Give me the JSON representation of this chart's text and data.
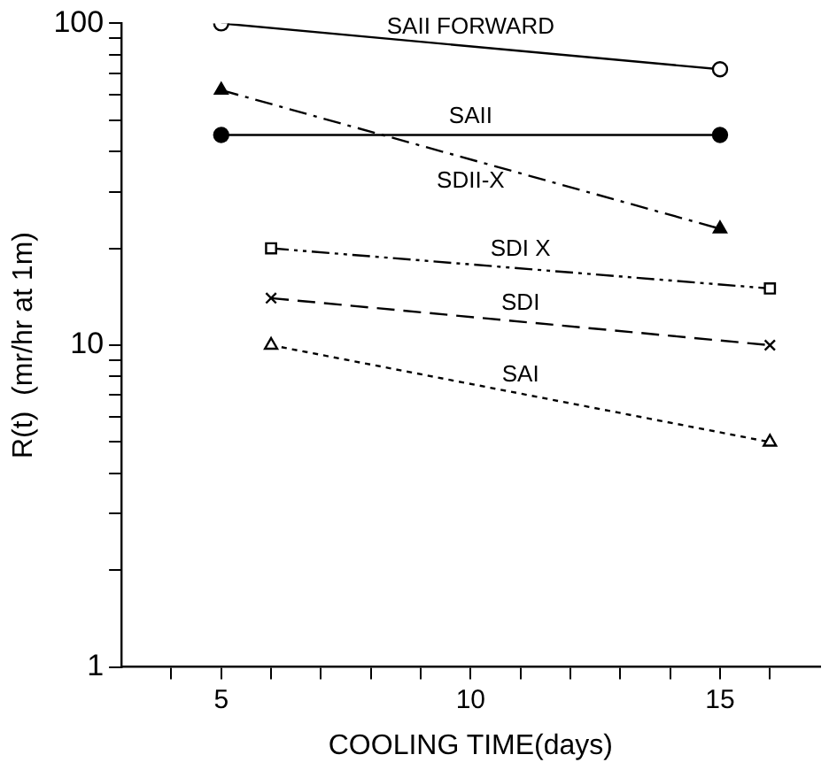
{
  "chart_data": {
    "type": "line",
    "xlabel": "COOLING TIME(days)",
    "ylabel": "R(t)  (mr/hr at 1m)",
    "log": "y",
    "grid": false,
    "legend": false,
    "xlim": [
      3,
      17
    ],
    "xticks": [
      {
        "value": 4,
        "label": null
      },
      5,
      {
        "value": 6,
        "label": null
      },
      {
        "value": 7,
        "label": null
      },
      {
        "value": 8,
        "label": null
      },
      {
        "value": 9,
        "label": null
      },
      10,
      {
        "value": 11,
        "label": null
      },
      {
        "value": 12,
        "label": null
      },
      {
        "value": 13,
        "label": null
      },
      {
        "value": 14,
        "label": null
      },
      15,
      {
        "value": 16,
        "label": null
      }
    ],
    "ylim": [
      1,
      100
    ],
    "yticks": [
      1,
      {
        "value": 2,
        "label": null
      },
      {
        "value": 3,
        "label": null
      },
      {
        "value": 4,
        "label": null
      },
      {
        "value": 5,
        "label": null
      },
      {
        "value": 6,
        "label": null
      },
      {
        "value": 7,
        "label": null
      },
      {
        "value": 8,
        "label": null
      },
      {
        "value": 9,
        "label": null
      },
      10,
      {
        "value": 20,
        "label": null
      },
      {
        "value": 30,
        "label": null
      },
      {
        "value": 40,
        "label": null
      },
      {
        "value": 50,
        "label": null
      },
      {
        "value": 60,
        "label": null
      },
      {
        "value": 70,
        "label": null
      },
      {
        "value": 80,
        "label": null
      },
      {
        "value": 90,
        "label": null
      },
      100
    ],
    "series": [
      {
        "name": "SAII FORWARD",
        "color": "#000000",
        "x": [
          5,
          15
        ],
        "values": [
          100,
          72
        ],
        "marker": "circle",
        "line_style": "solid"
      },
      {
        "name": "SAII",
        "color": "#000000",
        "x": [
          5,
          15
        ],
        "values": [
          45,
          45
        ],
        "marker": "circle",
        "line_style": "solid"
      },
      {
        "name": "SDII-X",
        "color": "#000000",
        "x": [
          5,
          15
        ],
        "values": [
          62,
          23
        ],
        "marker": "triangle",
        "line_style": "dashdot"
      },
      {
        "name": "SDI X",
        "color": "#000000",
        "x": [
          6,
          16
        ],
        "values": [
          20,
          15
        ],
        "marker": "square",
        "line_style": "dashdotdot"
      },
      {
        "name": "SDI",
        "color": "#000000",
        "x": [
          6,
          16
        ],
        "values": [
          14,
          10
        ],
        "marker": "cross",
        "line_style": "dashed"
      },
      {
        "name": "SAI",
        "color": "#000000",
        "x": [
          6,
          16
        ],
        "values": [
          10,
          5
        ],
        "marker": "triangle",
        "line_style": "dotted"
      }
    ]
  }
}
